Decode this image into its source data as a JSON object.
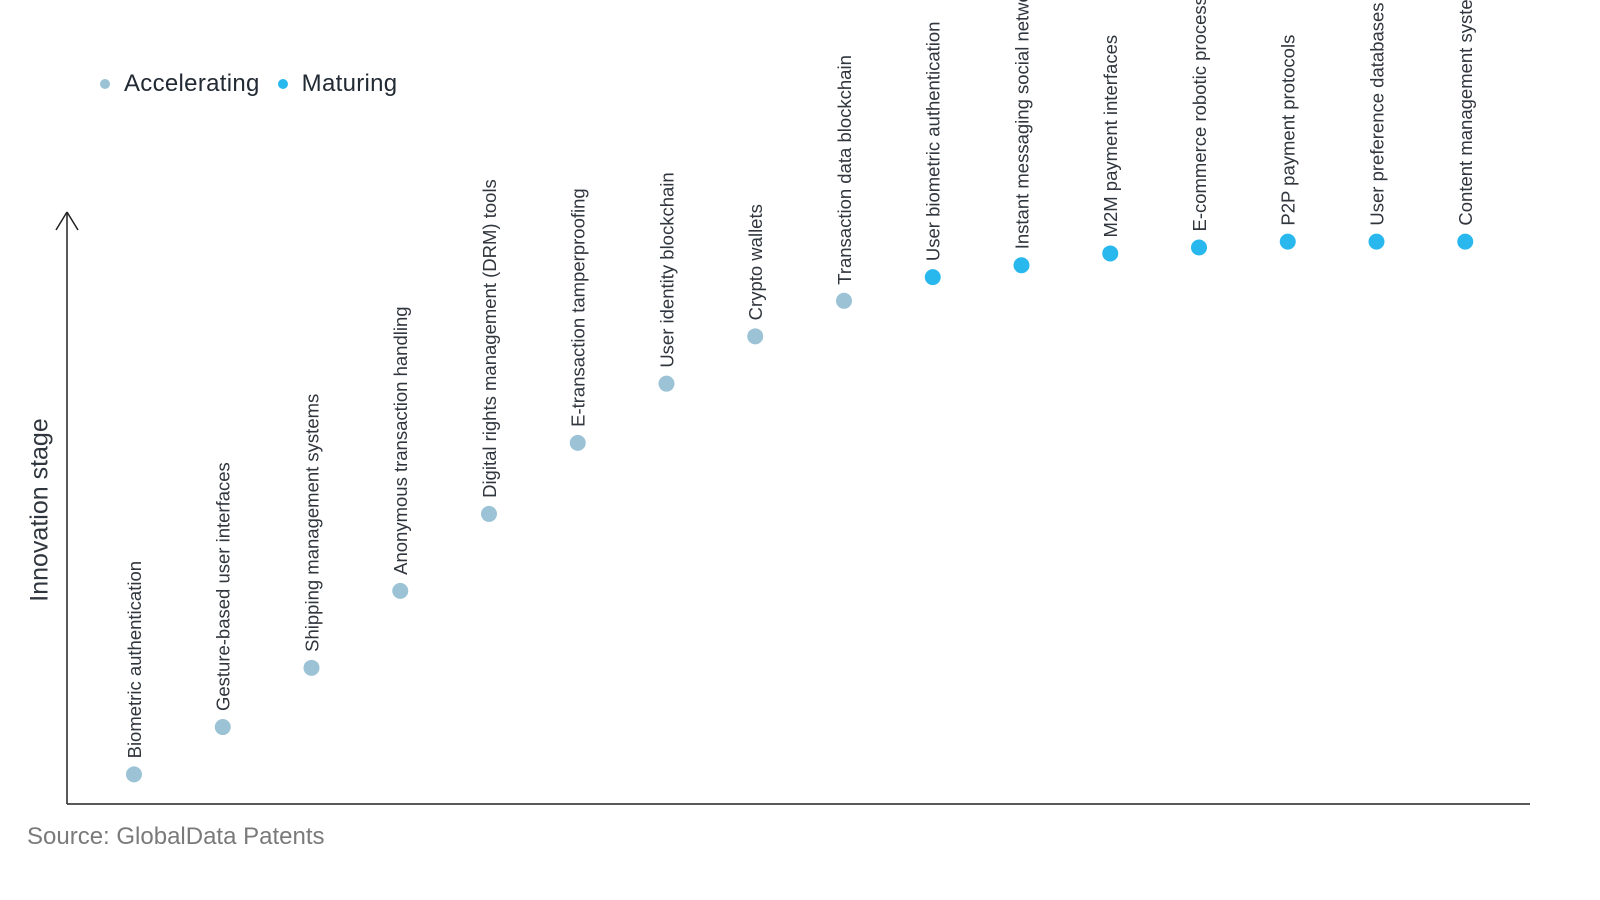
{
  "legend": {
    "accelerating_label": "Accelerating",
    "maturing_label": "Maturing"
  },
  "source": "Source: GlobalData Patents",
  "colors": {
    "accelerating": "#9cc3d5",
    "maturing": "#29b8ed",
    "axis": "#222222",
    "label": "#30363d"
  },
  "chart_data": {
    "type": "scatter",
    "title": "",
    "xlabel": "",
    "ylabel": "Innovation stage",
    "ylim": [
      0,
      100
    ],
    "legend_position": "top-left",
    "grid": false,
    "series": [
      {
        "name": "Accelerating",
        "points": [
          {
            "label": "Biometric authentication",
            "y": 5
          },
          {
            "label": "Gesture-based user interfaces",
            "y": 13
          },
          {
            "label": "Shipping management systems",
            "y": 23
          },
          {
            "label": "Anonymous transaction handling",
            "y": 36
          },
          {
            "label": "Digital rights management (DRM) tools",
            "y": 49
          },
          {
            "label": "E-transaction tamperproofing",
            "y": 61
          },
          {
            "label": "User identity blockchain",
            "y": 71
          },
          {
            "label": "Crypto wallets",
            "y": 79
          },
          {
            "label": "Transaction data blockchain",
            "y": 85
          }
        ]
      },
      {
        "name": "Maturing",
        "points": [
          {
            "label": "User biometric authentication",
            "y": 89
          },
          {
            "label": "Instant messaging social network",
            "y": 91
          },
          {
            "label": "M2M payment interfaces",
            "y": 93
          },
          {
            "label": "E-commerce robotic process automation",
            "y": 94
          },
          {
            "label": "P2P payment protocols",
            "y": 95
          },
          {
            "label": "User preference databases",
            "y": 95
          },
          {
            "label": "Content management system",
            "y": 95
          }
        ]
      }
    ]
  }
}
